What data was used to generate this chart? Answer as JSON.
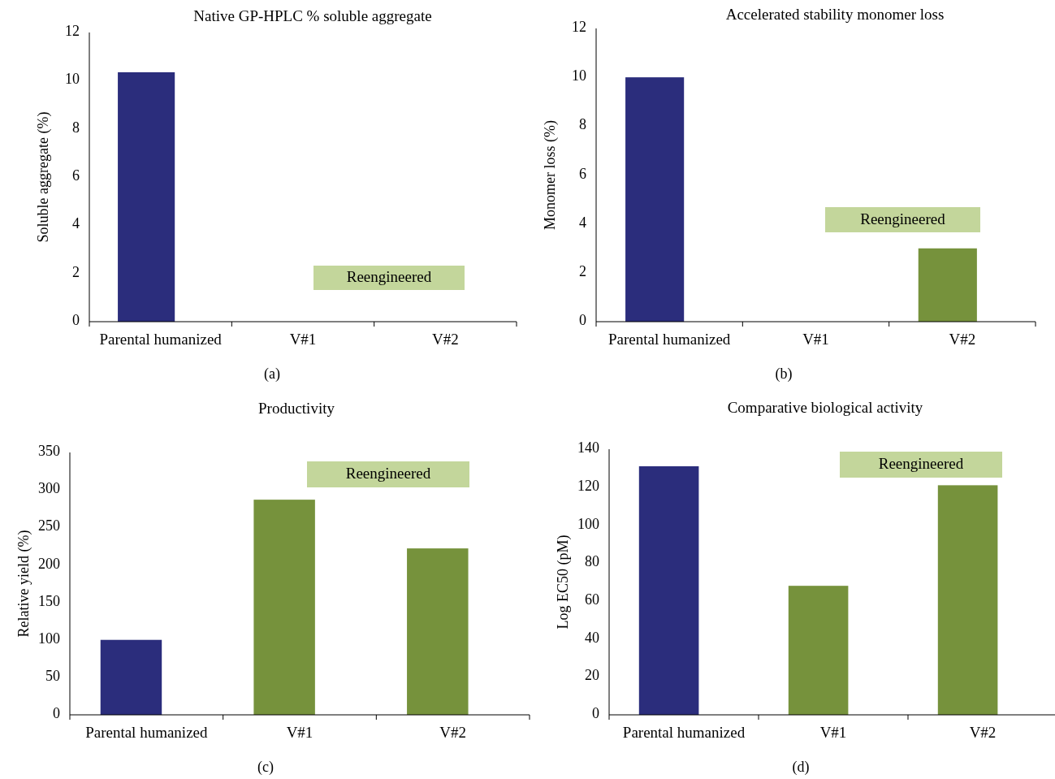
{
  "chart_data": [
    {
      "type": "bar",
      "title": "Native GP-HPLC % soluble aggregate",
      "ylabel": "Soluble aggregate (%)",
      "categories": [
        "Parental humanized",
        "V#1",
        "V#2"
      ],
      "values": [
        10.35,
        0,
        0
      ],
      "colors": [
        "#2b2d7c",
        "#76923c",
        "#76923c"
      ],
      "ylim": [
        0,
        12
      ],
      "yticks": [
        0,
        2,
        4,
        6,
        8,
        10,
        12
      ],
      "annotations": [
        "Reengineered",
        "(a)"
      ]
    },
    {
      "type": "bar",
      "title": "Accelerated stability monomer loss",
      "ylabel": "Monomer loss (%)",
      "categories": [
        "Parental humanized",
        "V#1",
        "V#2"
      ],
      "values": [
        10,
        0,
        3
      ],
      "colors": [
        "#2b2d7c",
        "#76923c",
        "#76923c"
      ],
      "ylim": [
        0,
        12
      ],
      "yticks": [
        0,
        2,
        4,
        6,
        8,
        10,
        12
      ],
      "annotations": [
        "Reengineered",
        "(b)"
      ]
    },
    {
      "type": "bar",
      "title": "Productivity",
      "ylabel": "Relative yield (%)",
      "categories": [
        "Parental humanized",
        "V#1",
        "V#2"
      ],
      "values": [
        100,
        287,
        222
      ],
      "colors": [
        "#2b2d7c",
        "#76923c",
        "#76923c"
      ],
      "ylim": [
        0,
        350
      ],
      "yticks": [
        0,
        50,
        100,
        150,
        200,
        250,
        300,
        350
      ],
      "annotations": [
        "Reengineered",
        "(c)"
      ]
    },
    {
      "type": "bar",
      "title": "Comparative biological activity",
      "ylabel": "Log EC50 (pM)",
      "categories": [
        "Parental humanized",
        "V#1",
        "V#2"
      ],
      "values": [
        131,
        68,
        121
      ],
      "colors": [
        "#2b2d7c",
        "#76923c",
        "#76923c"
      ],
      "ylim": [
        0,
        140
      ],
      "yticks": [
        0,
        20,
        40,
        60,
        80,
        100,
        120,
        140
      ],
      "annotations": [
        "Reengineered",
        "(d)"
      ]
    }
  ]
}
